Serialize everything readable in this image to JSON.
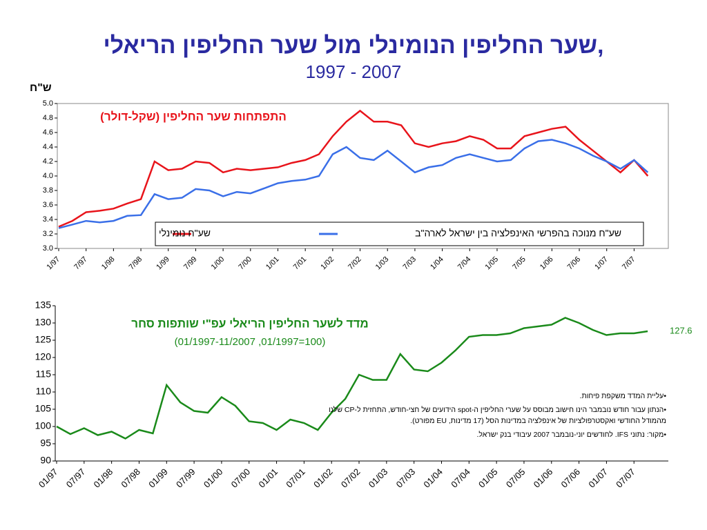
{
  "header": {
    "title": "שער החליפין הנומינלי מול שער החליפין הריאלי,",
    "subtitle": "1997 - 2007"
  },
  "notes": [
    "•עליית המדד משקפת פיחות.",
    "•הנתון עבור חודש נובמבר הינו חישוב מבוסס על שערי החליפין ה-spot הידועים של חצי-חודש, התחזית ל-CP שלנו מהמודל החודשי ואקסטרפולציות של אינפלציה במדינות הסל (17 מדינות, EU מפורט).",
    "•מקור: נתוני IFS. לחודשים יוני-נובמבר 2007 עיבודי בנק ישראל."
  ],
  "chart_data": [
    {
      "type": "line",
      "y_label": "ש\"ח",
      "annotation": "התפתחות שער החליפין (שקל-דולר)",
      "categories": [
        "1/97",
        null,
        "7/97",
        null,
        "1/98",
        null,
        "7/98",
        null,
        "1/99",
        null,
        "7/99",
        null,
        "1/00",
        null,
        "7/00",
        null,
        "1/01",
        null,
        "7/01",
        null,
        "1/02",
        null,
        "7/02",
        null,
        "1/03",
        null,
        "7/03",
        null,
        "1/04",
        null,
        "7/04",
        null,
        "1/05",
        null,
        "7/05",
        null,
        "1/06",
        null,
        "7/06",
        null,
        "1/07",
        null,
        "7/07",
        null
      ],
      "series": [
        {
          "name": "שע\"ח נומינלי",
          "color": "#e8141b",
          "values": [
            3.3,
            3.38,
            3.5,
            3.52,
            3.55,
            3.62,
            3.68,
            4.2,
            4.08,
            4.1,
            4.2,
            4.18,
            4.05,
            4.1,
            4.08,
            4.1,
            4.12,
            4.18,
            4.22,
            4.3,
            4.55,
            4.75,
            4.9,
            4.75,
            4.75,
            4.7,
            4.45,
            4.4,
            4.45,
            4.48,
            4.55,
            4.5,
            4.38,
            4.38,
            4.55,
            4.6,
            4.65,
            4.68,
            4.5,
            4.35,
            4.2,
            4.05,
            4.22,
            4.0
          ]
        },
        {
          "name": "שע\"ח מנוכה בהפרשי האינפלציה בין ישראל לארה\"ב",
          "color": "#3a6fe8",
          "values": [
            3.28,
            3.33,
            3.38,
            3.36,
            3.38,
            3.45,
            3.46,
            3.75,
            3.68,
            3.7,
            3.82,
            3.8,
            3.72,
            3.78,
            3.76,
            3.83,
            3.9,
            3.93,
            3.95,
            4.0,
            4.3,
            4.4,
            4.25,
            4.22,
            4.35,
            4.2,
            4.05,
            4.12,
            4.15,
            4.25,
            4.3,
            4.25,
            4.2,
            4.22,
            4.38,
            4.48,
            4.5,
            4.45,
            4.38,
            4.28,
            4.2,
            4.1,
            4.22,
            4.05
          ]
        }
      ],
      "ylim": [
        3.0,
        5.0
      ],
      "yticks": [
        {
          "value": 3,
          "label": "3.0"
        },
        3.2,
        3.4,
        3.6,
        3.8,
        {
          "value": 4,
          "label": "4.0"
        },
        4.2,
        4.4,
        4.6,
        4.8,
        {
          "value": 5,
          "label": "5.0"
        }
      ],
      "legend": "bottom-right",
      "box": true
    },
    {
      "type": "line",
      "annotation": "מדד לשער החליפין הריאלי עפ\"י שותפות סחר",
      "annotation2": "(01/1997-11/2007 ,01/1997=100)",
      "categories": [
        "01/97",
        null,
        "07/97",
        null,
        "01/98",
        null,
        "07/98",
        null,
        "01/99",
        null,
        "07/99",
        null,
        "01/00",
        null,
        "07/00",
        null,
        "01/01",
        null,
        "07/01",
        null,
        "01/02",
        null,
        "07/02",
        null,
        "01/03",
        null,
        "07/03",
        null,
        "01/04",
        null,
        "07/04",
        null,
        "01/05",
        null,
        "07/05",
        null,
        "01/06",
        null,
        "07/06",
        null,
        "01/07",
        null,
        "07/07",
        null
      ],
      "series": [
        {
          "name": "מדד",
          "color": "#1a8a1a",
          "values": [
            100,
            97.8,
            99.5,
            97.5,
            98.5,
            96.5,
            99,
            98,
            112,
            107,
            104.5,
            104,
            108.5,
            106,
            101.5,
            101,
            99,
            102,
            101,
            99,
            104,
            108,
            115,
            113.5,
            113.5,
            121,
            116.5,
            116,
            118.5,
            122,
            126,
            126.5,
            126.5,
            127,
            128.5,
            129,
            129.5,
            131.5,
            130,
            128,
            126.5,
            127,
            127,
            127.6
          ]
        }
      ],
      "ylim": [
        90,
        135
      ],
      "yticks": [
        90,
        95,
        100,
        105,
        110,
        115,
        120,
        125,
        130,
        135
      ],
      "box": false
    }
  ]
}
